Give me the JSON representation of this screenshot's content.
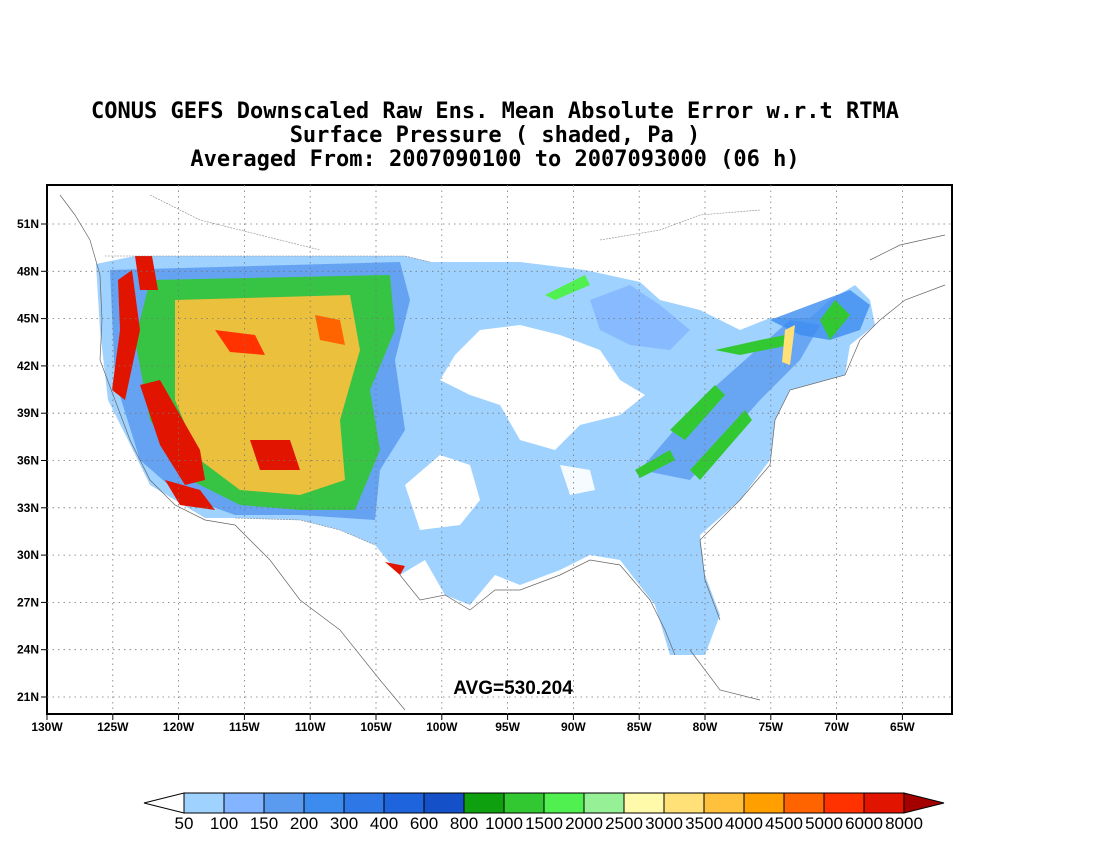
{
  "title": {
    "line1": "CONUS GEFS Downscaled Raw Ens. Mean Absolute Error w.r.t RTMA",
    "line2": "Surface Pressure ( shaded, Pa )",
    "line3": "Averaged From: 2007090100 to 2007093000 (06 h)"
  },
  "annotation": "AVG=530.204",
  "lat_labels": [
    "51N",
    "48N",
    "45N",
    "42N",
    "39N",
    "36N",
    "33N",
    "30N",
    "27N",
    "24N",
    "21N"
  ],
  "lon_labels": [
    "130W",
    "125W",
    "120W",
    "115W",
    "110W",
    "105W",
    "100W",
    "95W",
    "90W",
    "85W",
    "80W",
    "75W",
    "70W",
    "65W"
  ],
  "colorbar": {
    "labels": [
      "50",
      "100",
      "150",
      "200",
      "300",
      "400",
      "600",
      "800",
      "1000",
      "1500",
      "2000",
      "2500",
      "3000",
      "3500",
      "4000",
      "4500",
      "5000",
      "6000",
      "8000"
    ],
    "below_color": "#ffffff",
    "above_color": "#a50000",
    "colors": [
      "#a0d2ff",
      "#82b4ff",
      "#5a9bf0",
      "#3c8cf0",
      "#2d78e6",
      "#1e64dc",
      "#1450c8",
      "#0fa00f",
      "#32c832",
      "#50f050",
      "#96f096",
      "#fffaaa",
      "#ffe178",
      "#ffc03c",
      "#ffa000",
      "#ff6400",
      "#ff3200",
      "#e11400",
      "#a50000"
    ]
  },
  "legend_colors": {
    "low": "#a0d2ff",
    "mid": "#2d78e6",
    "green": "#32c832",
    "high": "#e11400",
    "map_outline": "#666666"
  }
}
